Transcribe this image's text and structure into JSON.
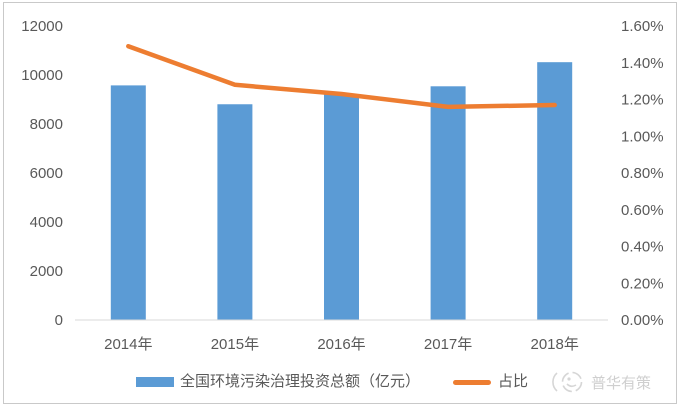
{
  "chart_data": {
    "type": "bar",
    "subtype": "combo-bar-line-dual-axis",
    "title": "",
    "categories": [
      "2014年",
      "2015年",
      "2016年",
      "2017年",
      "2018年"
    ],
    "series": [
      {
        "name": "全国环境污染治理投资总额（亿元）",
        "type": "bar",
        "axis": "left",
        "values": [
          9576,
          8806,
          9220,
          9539,
          10523
        ]
      },
      {
        "name": "占比",
        "type": "line",
        "axis": "right",
        "values": [
          1.49,
          1.28,
          1.23,
          1.16,
          1.17
        ],
        "unit": "%"
      }
    ],
    "left_axis": {
      "min": 0,
      "max": 12000,
      "step": 2000,
      "tick_labels": [
        "0",
        "2000",
        "4000",
        "6000",
        "8000",
        "10000",
        "12000"
      ]
    },
    "right_axis": {
      "min": 0,
      "max": 1.6,
      "step": 0.2,
      "tick_labels": [
        "0.00%",
        "0.20%",
        "0.40%",
        "0.60%",
        "0.80%",
        "1.00%",
        "1.20%",
        "1.40%",
        "1.60%"
      ]
    },
    "grid": false,
    "legend_position": "bottom",
    "xlabel": "",
    "ylabel": ""
  },
  "legend": {
    "bar_label": "全国环境污染治理投资总额（亿元）",
    "line_label": "占比"
  },
  "watermark": {
    "text": "普华有策"
  },
  "colors": {
    "bar": "#5B9BD5",
    "line": "#ED7D31",
    "axis_text": "#595959",
    "axis_line": "#D9D9D9",
    "border": "#C9C9C9",
    "watermark": "#D6D6D6"
  }
}
